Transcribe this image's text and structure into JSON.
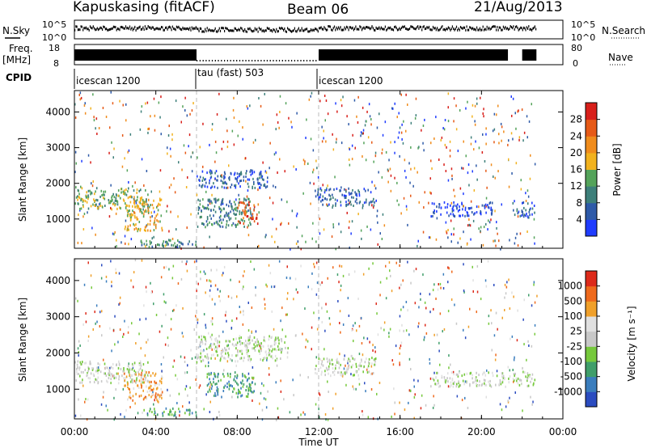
{
  "header": {
    "station": "Kapuskasing (fitACF)",
    "beam": "Beam 06",
    "date": "21/Aug/2013"
  },
  "top_panels": {
    "nsky_label": "N.Sky",
    "nsky_ticks": [
      "10^5",
      "10^0"
    ],
    "nsearch_ticks": [
      "10^5",
      "10^0"
    ],
    "nsearch_label": "N.Search",
    "freq_label": "Freq.",
    "freq_unit": "[MHz]",
    "freq_ticks": [
      "18",
      "8"
    ],
    "nave_ticks": [
      "80",
      "0"
    ],
    "nave_label": "Nave",
    "cpid_label": "CPID",
    "cpid_segments": [
      {
        "label": "icescan 1200",
        "start_h": 0.0,
        "end_h": 6.0
      },
      {
        "label": "tau (fast) 503",
        "start_h": 6.0,
        "end_h": 12.0
      },
      {
        "label": "icescan 1200",
        "start_h": 12.0,
        "end_h": 24.0
      }
    ]
  },
  "x_axis": {
    "label": "Time UT",
    "ticks": [
      "00:00",
      "04:00",
      "08:00",
      "12:00",
      "16:00",
      "20:00",
      "00:00"
    ],
    "range_h": [
      0,
      24
    ]
  },
  "chart_data": [
    {
      "type": "heatmap",
      "name": "Power",
      "xlabel": "Time UT",
      "ylabel": "Slant Range [km]",
      "yticks": [
        1000,
        2000,
        3000,
        4000
      ],
      "ylim": [
        180,
        4600
      ],
      "colorbar": {
        "label": "Power [dB]",
        "ticks": [
          4,
          8,
          12,
          16,
          20,
          24,
          28
        ],
        "colors": [
          "#1f3cff",
          "#2e5aa8",
          "#3d7f7a",
          "#54a35a",
          "#f2b21e",
          "#f08c1c",
          "#e65a17",
          "#d81f1a"
        ]
      },
      "regions": [
        {
          "t": [
            0.0,
            3.6
          ],
          "r": [
            1300,
            1900
          ],
          "c": 3
        },
        {
          "t": [
            2.4,
            4.3
          ],
          "r": [
            700,
            1600
          ],
          "c": 4
        },
        {
          "t": [
            3.2,
            6.0
          ],
          "r": [
            250,
            450
          ],
          "c": 2
        },
        {
          "t": [
            6.0,
            9.5
          ],
          "r": [
            1900,
            2400
          ],
          "c": 1
        },
        {
          "t": [
            6.0,
            8.8
          ],
          "r": [
            800,
            1600
          ],
          "c": 2
        },
        {
          "t": [
            8.0,
            9.0
          ],
          "r": [
            900,
            1500
          ],
          "c": 6
        },
        {
          "t": [
            11.8,
            14.8
          ],
          "r": [
            1400,
            1900
          ],
          "c": 1
        },
        {
          "t": [
            17.5,
            20.5
          ],
          "r": [
            1100,
            1500
          ],
          "c": 0
        },
        {
          "t": [
            21.5,
            22.6
          ],
          "r": [
            1100,
            1500
          ],
          "c": 1
        }
      ]
    },
    {
      "type": "heatmap",
      "name": "Velocity",
      "xlabel": "Time UT",
      "ylabel": "Slant Range [km]",
      "yticks": [
        1000,
        2000,
        3000,
        4000
      ],
      "ylim": [
        180,
        4600
      ],
      "colorbar": {
        "label": "Velocity [m s⁻¹]",
        "ticks": [
          1000,
          500,
          100,
          25,
          -25,
          -100,
          -500,
          -1000
        ],
        "colors": [
          "#2b4cc0",
          "#3a7dbd",
          "#3f9e6a",
          "#76c93c",
          "#c8c8c8",
          "#e0e0e0",
          "#f0a02a",
          "#ef6a1c",
          "#dd2a1a"
        ]
      },
      "regions": [
        {
          "t": [
            0.0,
            3.6
          ],
          "r": [
            1200,
            1800
          ],
          "c": 4
        },
        {
          "t": [
            2.4,
            4.3
          ],
          "r": [
            700,
            1500
          ],
          "c": 6
        },
        {
          "t": [
            3.3,
            6.0
          ],
          "r": [
            300,
            500
          ],
          "c": 2
        },
        {
          "t": [
            6.0,
            10.5
          ],
          "r": [
            1800,
            2500
          ],
          "c": 4
        },
        {
          "t": [
            6.5,
            8.8
          ],
          "r": [
            800,
            1500
          ],
          "c": 2
        },
        {
          "t": [
            11.8,
            14.8
          ],
          "r": [
            1400,
            1900
          ],
          "c": 4
        },
        {
          "t": [
            17.5,
            22.6
          ],
          "r": [
            1100,
            1500
          ],
          "c": 4
        }
      ]
    }
  ]
}
